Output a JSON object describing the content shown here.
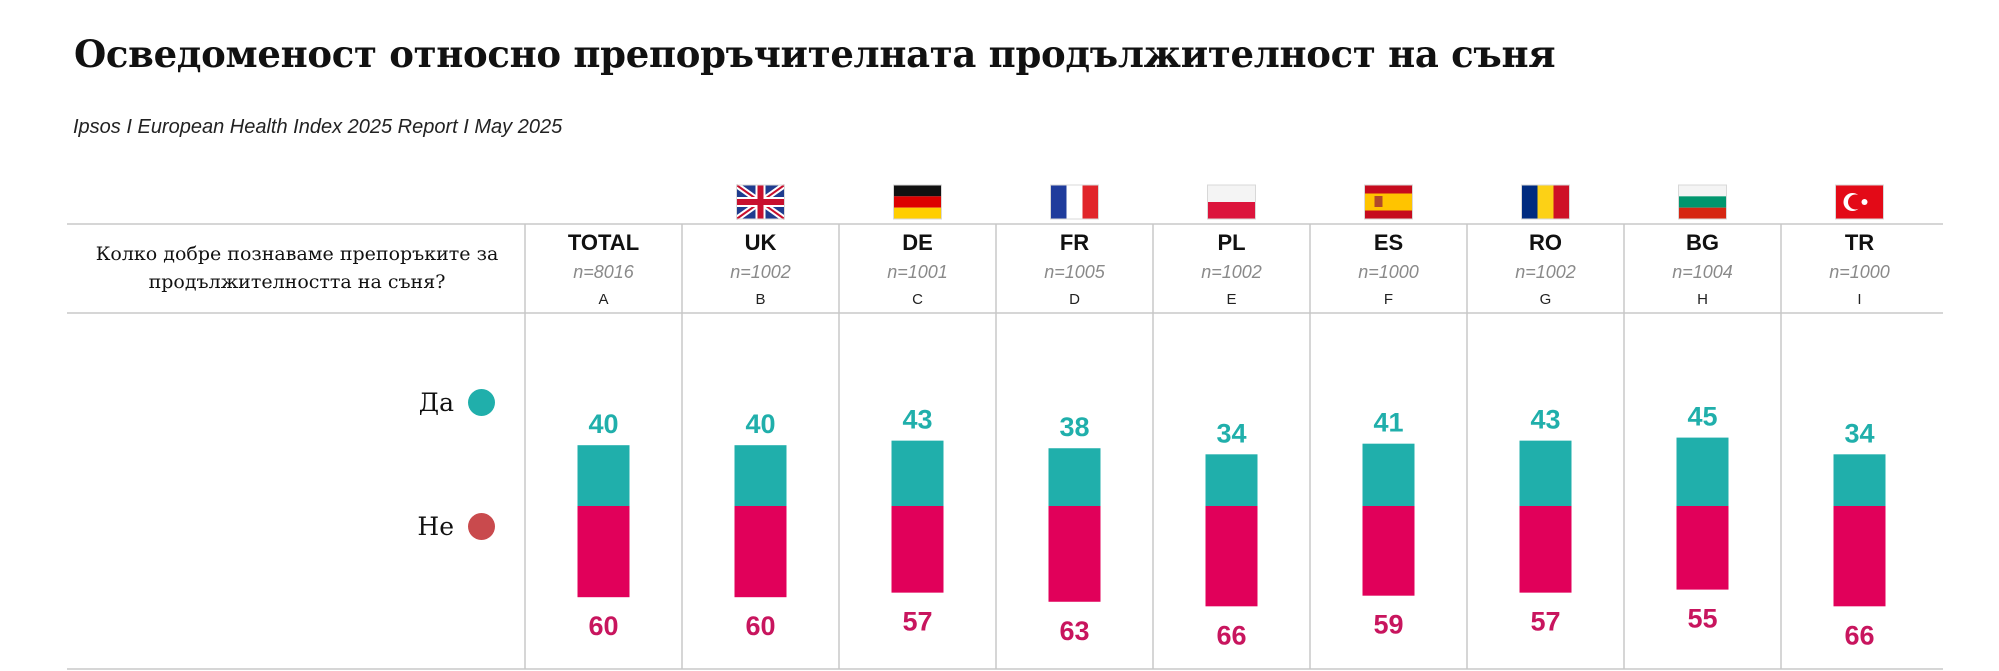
{
  "title": "Осведомeност относно препоръчителната продължителност на съня",
  "subtitle": "Ipsos I European Health Index 2025 Report I May 2025",
  "question": "Колко добре познаваме препоръките за продължителността на съня?",
  "legend": [
    {
      "label": "Да",
      "color": "#20AFAB"
    },
    {
      "label": "Не",
      "color": "#E1005A"
    }
  ],
  "chart_data": {
    "type": "bar",
    "stacked": true,
    "categories": [
      "TOTAL",
      "UK",
      "DE",
      "FR",
      "PL",
      "ES",
      "RO",
      "BG",
      "TR"
    ],
    "sample_sizes": [
      "n=8016",
      "n=1002",
      "n=1001",
      "n=1005",
      "n=1002",
      "n=1000",
      "n=1002",
      "n=1004",
      "n=1000"
    ],
    "column_letters": [
      "A",
      "B",
      "C",
      "D",
      "E",
      "F",
      "G",
      "H",
      "I"
    ],
    "flags": [
      "",
      "uk-flag-icon",
      "germany-flag-icon",
      "france-flag-icon",
      "poland-flag-icon",
      "spain-flag-icon",
      "romania-flag-icon",
      "bulgaria-flag-icon",
      "turkey-flag-icon"
    ],
    "series": [
      {
        "name": "Да",
        "color": "#20AFAB",
        "values": [
          40,
          40,
          43,
          38,
          34,
          41,
          43,
          45,
          34
        ]
      },
      {
        "name": "Не",
        "color": "#E1005A",
        "values": [
          60,
          60,
          57,
          63,
          66,
          59,
          57,
          55,
          66
        ]
      }
    ],
    "label_colors": {
      "Да": "#20AFAB",
      "Не": "#C8155E"
    },
    "ylim": [
      0,
      100
    ]
  }
}
